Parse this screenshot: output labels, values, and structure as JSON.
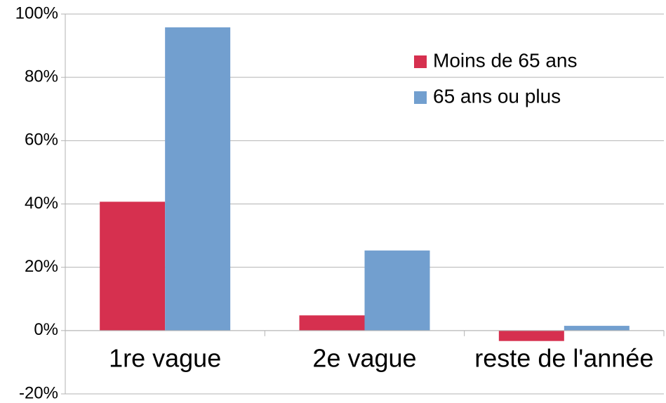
{
  "chart_data": {
    "type": "bar",
    "categories": [
      "1re vague",
      "2e vague",
      "reste de l'année"
    ],
    "series": [
      {
        "name": "Moins de 65 ans",
        "color": "#d6304f",
        "values": [
          40.7,
          4.8,
          -3.3
        ]
      },
      {
        "name": "65 ans ou plus",
        "color": "#729fcf",
        "values": [
          95.8,
          25.3,
          1.5
        ]
      }
    ],
    "ylim": [
      -20,
      100
    ],
    "yticks": [
      {
        "value": -20,
        "label": "-20%"
      },
      {
        "value": 0,
        "label": "0%"
      },
      {
        "value": 20,
        "label": "20%"
      },
      {
        "value": 40,
        "label": "40%"
      },
      {
        "value": 60,
        "label": "60%"
      },
      {
        "value": 80,
        "label": "80%"
      },
      {
        "value": 100,
        "label": "100%"
      }
    ],
    "grid": true,
    "legend": "upper right"
  }
}
